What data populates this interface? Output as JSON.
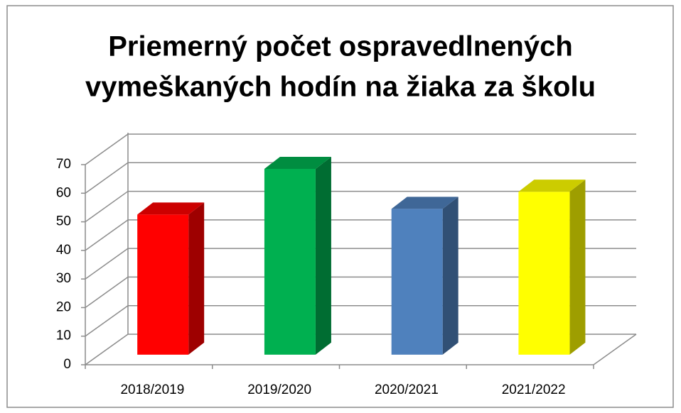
{
  "chart_data": {
    "type": "bar3d",
    "title": [
      "Priemerný počet ospravedlnených",
      "vymeškaných hodín na žiaka za školu"
    ],
    "categories": [
      "2018/2019",
      "2019/2020",
      "2020/2021",
      "2021/2022"
    ],
    "values": [
      49,
      65,
      51,
      57
    ],
    "colors": [
      "#ff0000",
      "#00b050",
      "#4f81bd",
      "#ffff00"
    ],
    "ylim": [
      0,
      70
    ],
    "yticks": [
      0,
      10,
      20,
      30,
      40,
      50,
      60,
      70
    ],
    "grid": true
  }
}
